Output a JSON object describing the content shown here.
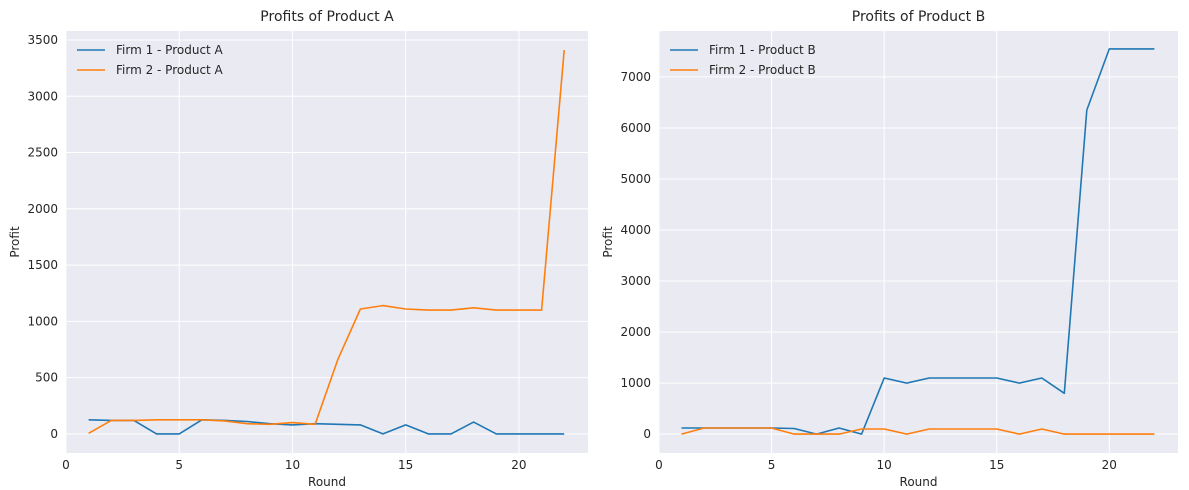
{
  "chart_data": [
    {
      "type": "line",
      "title": "Profits of Product A",
      "xlabel": "Round",
      "ylabel": "Profit",
      "xlim": [
        0,
        23.05
      ],
      "ylim": [
        -170,
        3580
      ],
      "xticks": [
        0,
        5,
        10,
        15,
        20
      ],
      "yticks": [
        0,
        500,
        1000,
        1500,
        2000,
        2500,
        3000,
        3500
      ],
      "grid": true,
      "legend": "top-left",
      "x": [
        1,
        2,
        3,
        4,
        5,
        6,
        7,
        8,
        9,
        10,
        11,
        12,
        13,
        14,
        15,
        16,
        17,
        18,
        19,
        20,
        21,
        22
      ],
      "series": [
        {
          "name": "Firm 1 - Product A",
          "color": "#1f77b4",
          "values": [
            125,
            120,
            120,
            0,
            0,
            125,
            120,
            110,
            90,
            80,
            90,
            85,
            80,
            0,
            80,
            0,
            0,
            105,
            0,
            0,
            0,
            0
          ]
        },
        {
          "name": "Firm 2 - Product A",
          "color": "#ff7f0e",
          "values": [
            5,
            120,
            120,
            125,
            125,
            125,
            115,
            90,
            85,
            100,
            85,
            660,
            1110,
            1140,
            1110,
            1100,
            1100,
            1120,
            1100,
            1100,
            1100,
            3410
          ]
        }
      ]
    },
    {
      "type": "line",
      "title": "Profits of Product B",
      "xlabel": "Round",
      "ylabel": "Profit",
      "xlim": [
        0,
        23.05
      ],
      "ylim": [
        -370,
        7900
      ],
      "xticks": [
        0,
        5,
        10,
        15,
        20
      ],
      "yticks": [
        0,
        1000,
        2000,
        3000,
        4000,
        5000,
        6000,
        7000
      ],
      "grid": true,
      "legend": "top-left",
      "x": [
        1,
        2,
        3,
        4,
        5,
        6,
        7,
        8,
        9,
        10,
        11,
        12,
        13,
        14,
        15,
        16,
        17,
        18,
        19,
        20,
        21,
        22
      ],
      "series": [
        {
          "name": "Firm 1 - Product B",
          "color": "#1f77b4",
          "values": [
            120,
            120,
            120,
            120,
            120,
            110,
            0,
            120,
            0,
            1100,
            1000,
            1100,
            1100,
            1100,
            1100,
            1000,
            1100,
            800,
            6350,
            7550,
            7550,
            7550
          ]
        },
        {
          "name": "Firm 2 - Product B",
          "color": "#ff7f0e",
          "values": [
            0,
            120,
            120,
            120,
            120,
            0,
            0,
            0,
            100,
            100,
            0,
            100,
            100,
            100,
            100,
            0,
            100,
            0,
            0,
            0,
            0,
            0
          ]
        }
      ]
    }
  ]
}
